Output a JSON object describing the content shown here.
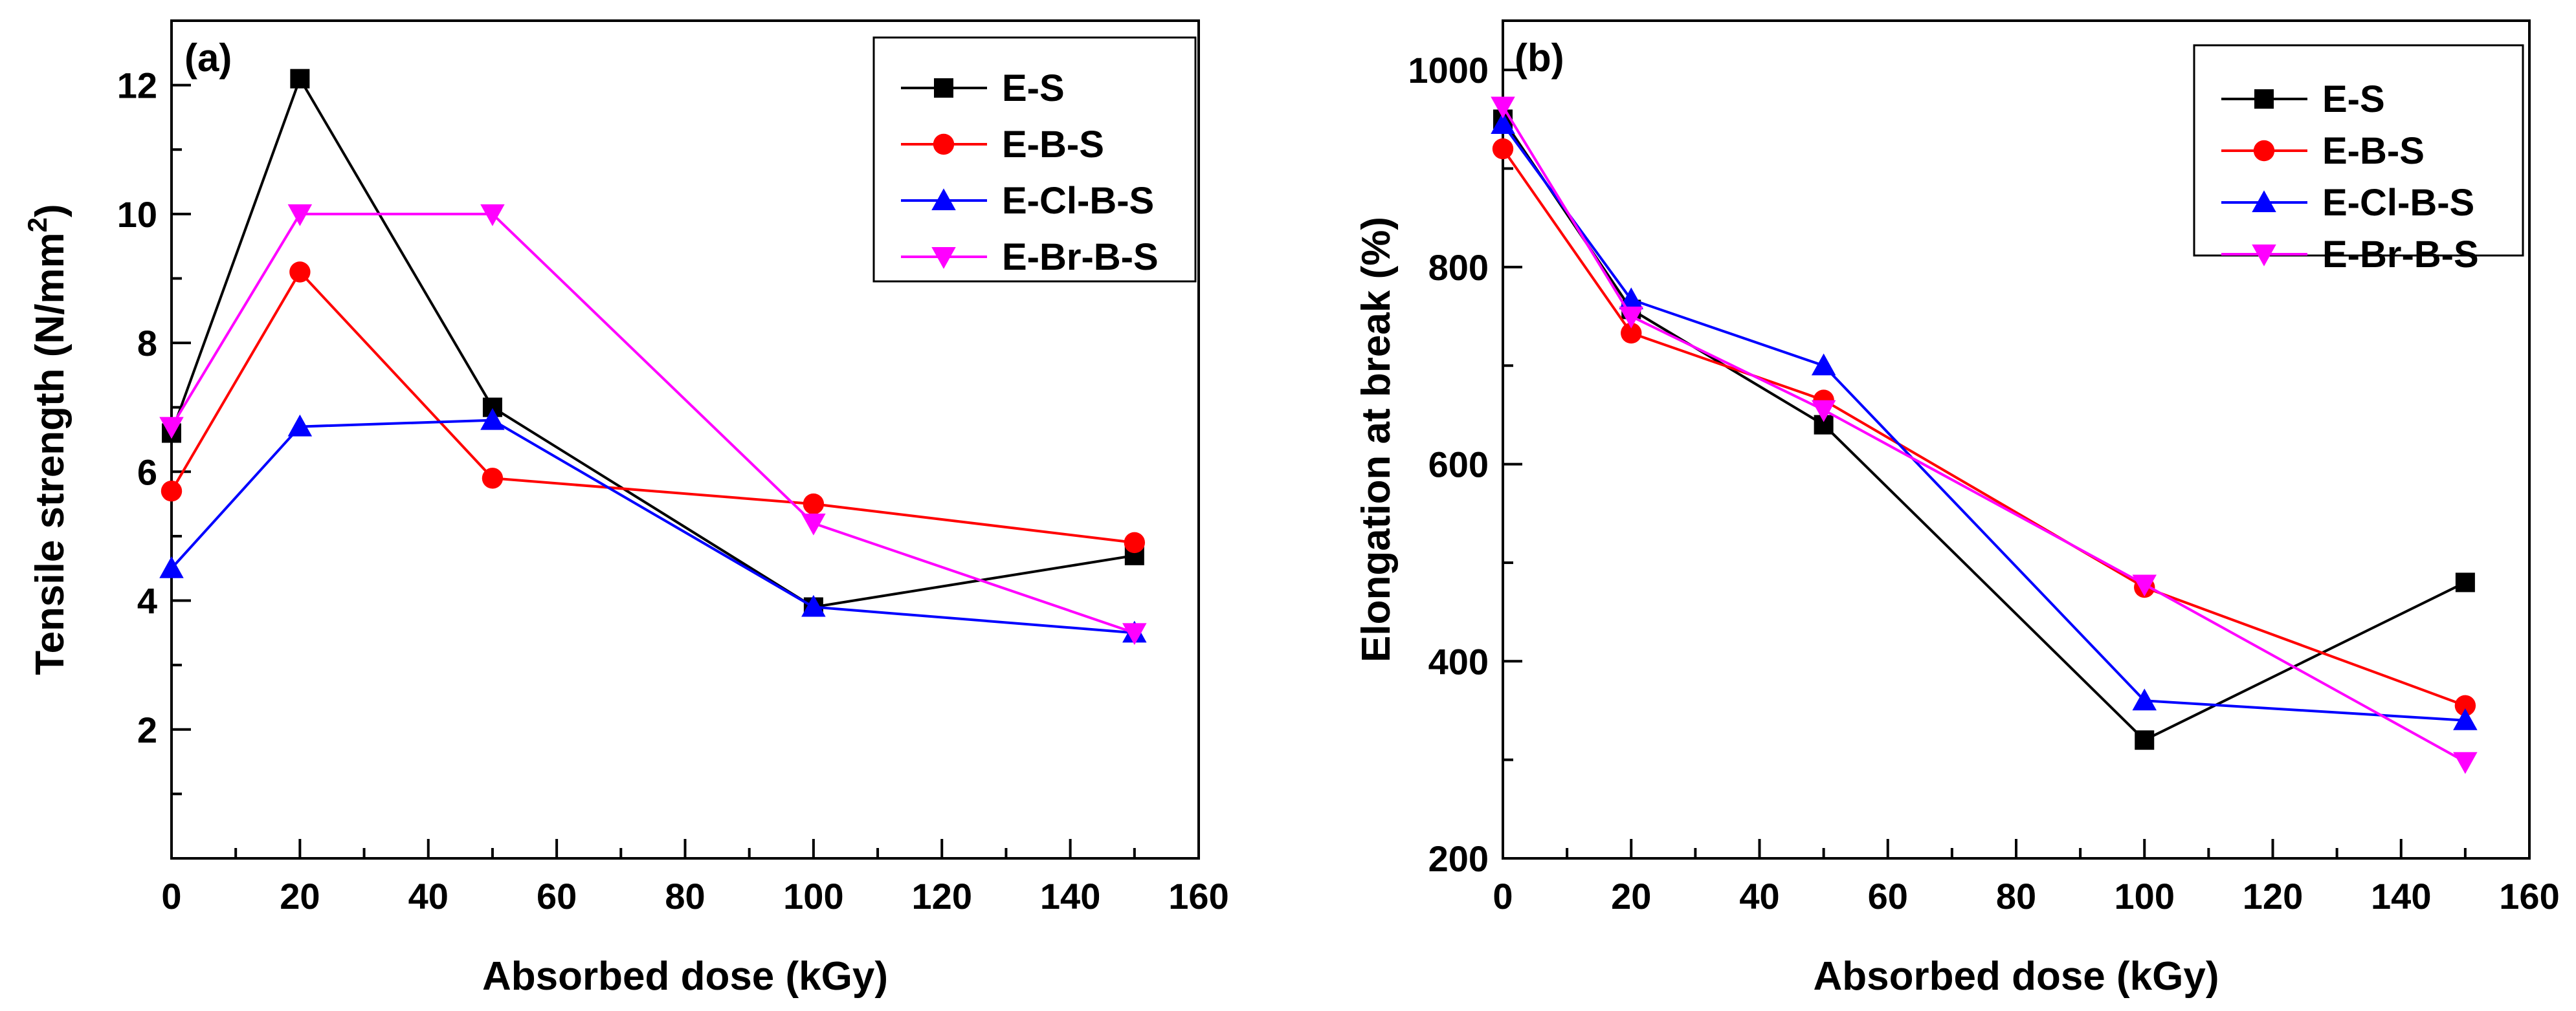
{
  "chart_data": [
    {
      "type": "line",
      "panel_label": "(a)",
      "xlabel": "Absorbed dose (kGy)",
      "ylabel_main": "Tensile strength (N/mm",
      "ylabel_sup": "2",
      "ylabel_close": ")",
      "xlim": [
        0,
        160
      ],
      "ylim": [
        0,
        13
      ],
      "x_ticks": [
        "0",
        "20",
        "40",
        "60",
        "80",
        "100",
        "120",
        "140",
        "160"
      ],
      "y_ticks": [
        "2",
        "4",
        "6",
        "8",
        "10",
        "12"
      ],
      "grid": false,
      "legend_position": "top-right",
      "series": [
        {
          "name": "E-S",
          "color": "#000000",
          "marker": "square",
          "x": [
            0,
            20,
            50,
            100,
            150
          ],
          "y": [
            6.6,
            12.1,
            7.0,
            3.9,
            4.7
          ]
        },
        {
          "name": "E-B-S",
          "color": "#ff0000",
          "marker": "circle",
          "x": [
            0,
            20,
            50,
            100,
            150
          ],
          "y": [
            5.7,
            9.1,
            5.9,
            5.5,
            4.9
          ]
        },
        {
          "name": "E-Cl-B-S",
          "color": "#0000ff",
          "marker": "triangle-up",
          "x": [
            0,
            20,
            50,
            100,
            150
          ],
          "y": [
            4.5,
            6.7,
            6.8,
            3.9,
            3.5
          ]
        },
        {
          "name": "E-Br-B-S",
          "color": "#ff00ff",
          "marker": "triangle-down",
          "x": [
            0,
            20,
            50,
            100,
            150
          ],
          "y": [
            6.7,
            10.0,
            10.0,
            5.2,
            3.5
          ]
        }
      ]
    },
    {
      "type": "line",
      "panel_label": "(b)",
      "xlabel": "Absorbed dose (kGy)",
      "ylabel": "Elongation at break (%)",
      "xlim": [
        0,
        160
      ],
      "ylim": [
        200,
        1050
      ],
      "x_ticks": [
        "0",
        "20",
        "40",
        "60",
        "80",
        "100",
        "120",
        "140",
        "160"
      ],
      "y_ticks": [
        "200",
        "400",
        "600",
        "800",
        "1000"
      ],
      "grid": false,
      "legend_position": "top-right",
      "series": [
        {
          "name": "E-S",
          "color": "#000000",
          "marker": "square",
          "x": [
            0,
            20,
            50,
            100,
            150
          ],
          "y": [
            950,
            757,
            640,
            320,
            480
          ]
        },
        {
          "name": "E-B-S",
          "color": "#ff0000",
          "marker": "circle",
          "x": [
            0,
            20,
            50,
            100,
            150
          ],
          "y": [
            920,
            733,
            665,
            475,
            355
          ]
        },
        {
          "name": "E-Cl-B-S",
          "color": "#0000ff",
          "marker": "triangle-up",
          "x": [
            0,
            20,
            50,
            100,
            150
          ],
          "y": [
            945,
            767,
            700,
            360,
            340
          ]
        },
        {
          "name": "E-Br-B-S",
          "color": "#ff00ff",
          "marker": "triangle-down",
          "x": [
            0,
            20,
            50,
            100,
            150
          ],
          "y": [
            963,
            750,
            655,
            478,
            298
          ]
        }
      ]
    }
  ]
}
